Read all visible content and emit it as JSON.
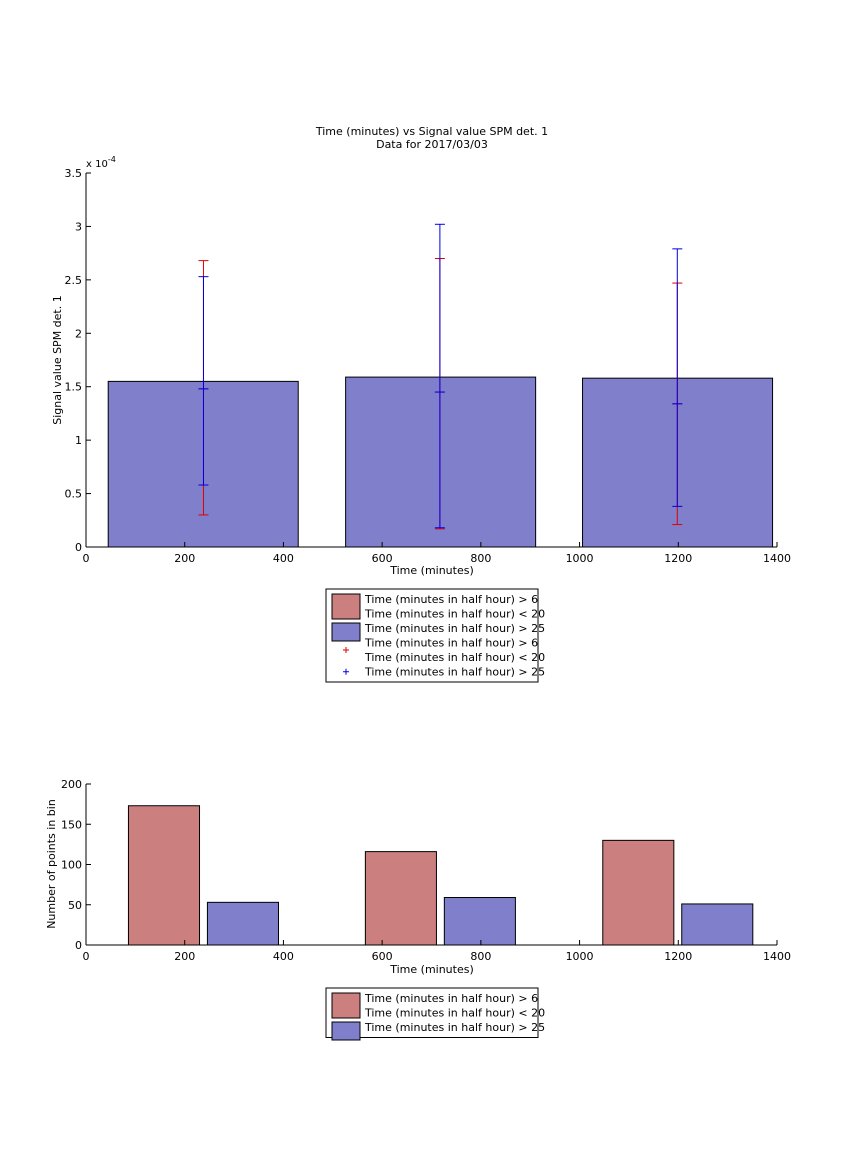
{
  "colors": {
    "red_fill": "#cc7f7f",
    "blue_fill": "#7f7fcc",
    "red_err": "#e00000",
    "blue_err": "#0000e0"
  },
  "chart_data": [
    {
      "type": "bar",
      "title": "Time (minutes) vs Signal value SPM det. 1",
      "subtitle": "Data for 2017/03/03",
      "xlabel": "Time (minutes)",
      "ylabel": "Signal value SPM det. 1",
      "y_exponent_label": "x 10",
      "y_exponent_power": "-4",
      "xlim": [
        0,
        1400
      ],
      "ylim": [
        0,
        3.5
      ],
      "xticks": [
        "0",
        "200",
        "400",
        "600",
        "800",
        "1000",
        "1200",
        "1400"
      ],
      "yticks": [
        "0",
        "0.5",
        "1",
        "1.5",
        "2",
        "2.5",
        "3",
        "3.5"
      ],
      "bars": [
        {
          "x0": 45,
          "x1": 430,
          "value": 1.55
        },
        {
          "x0": 526,
          "x1": 911,
          "value": 1.59
        },
        {
          "x0": 1006,
          "x1": 1391,
          "value": 1.58
        }
      ],
      "series": [
        {
          "name": "Time (minutes in half hour) > 6\nTime (minutes in half hour) < 20",
          "color": "red",
          "errorbars": [
            {
              "x": 238,
              "y": 1.48,
              "low": 0.3,
              "high": 2.68
            },
            {
              "x": 717,
              "y": 1.45,
              "low": 0.17,
              "high": 2.7
            },
            {
              "x": 1198,
              "y": 1.34,
              "low": 0.21,
              "high": 2.47
            }
          ]
        },
        {
          "name": "Time (minutes in half hour) > 25",
          "color": "blue",
          "errorbars": [
            {
              "x": 238,
              "y": 1.48,
              "low": 0.58,
              "high": 2.53
            },
            {
              "x": 717,
              "y": 1.45,
              "low": 0.18,
              "high": 3.02
            },
            {
              "x": 1198,
              "y": 1.34,
              "low": 0.38,
              "high": 2.79
            }
          ]
        }
      ],
      "legend": {
        "placement": "below",
        "entries": [
          {
            "kind": "patch",
            "color": "red",
            "lines": [
              "Time (minutes in half hour) > 6",
              "Time (minutes in half hour) < 20"
            ]
          },
          {
            "kind": "patch",
            "color": "blue",
            "lines": [
              "Time (minutes in half hour) > 25"
            ]
          },
          {
            "kind": "marker",
            "color": "red",
            "lines": [
              "Time (minutes in half hour) > 6",
              "Time (minutes in half hour) < 20"
            ]
          },
          {
            "kind": "marker",
            "color": "blue",
            "lines": [
              "Time (minutes in half hour) > 25"
            ]
          }
        ]
      }
    },
    {
      "type": "bar",
      "xlabel": "Time (minutes)",
      "ylabel": "Number of points in bin",
      "xlim": [
        0,
        1400
      ],
      "ylim": [
        0,
        200
      ],
      "xticks": [
        "0",
        "200",
        "400",
        "600",
        "800",
        "1000",
        "1200",
        "1400"
      ],
      "yticks": [
        "0",
        "50",
        "100",
        "150",
        "200"
      ],
      "series": [
        {
          "name": "Time (minutes in half hour) > 6\nTime (minutes in half hour) < 20",
          "color": "red",
          "bars": [
            {
              "x0": 86,
              "x1": 230,
              "value": 173
            },
            {
              "x0": 566,
              "x1": 710,
              "value": 116
            },
            {
              "x0": 1047,
              "x1": 1191,
              "value": 130
            }
          ]
        },
        {
          "name": "Time (minutes in half hour) > 25",
          "color": "blue",
          "bars": [
            {
              "x0": 246,
              "x1": 390,
              "value": 53
            },
            {
              "x0": 726,
              "x1": 870,
              "value": 59
            },
            {
              "x0": 1207,
              "x1": 1351,
              "value": 51
            }
          ]
        }
      ],
      "legend": {
        "placement": "below",
        "entries": [
          {
            "kind": "patch",
            "color": "red",
            "lines": [
              "Time (minutes in half hour) > 6",
              "Time (minutes in half hour) < 20"
            ]
          },
          {
            "kind": "patch",
            "color": "blue",
            "lines": [
              "Time (minutes in half hour) > 25"
            ]
          }
        ]
      }
    }
  ]
}
